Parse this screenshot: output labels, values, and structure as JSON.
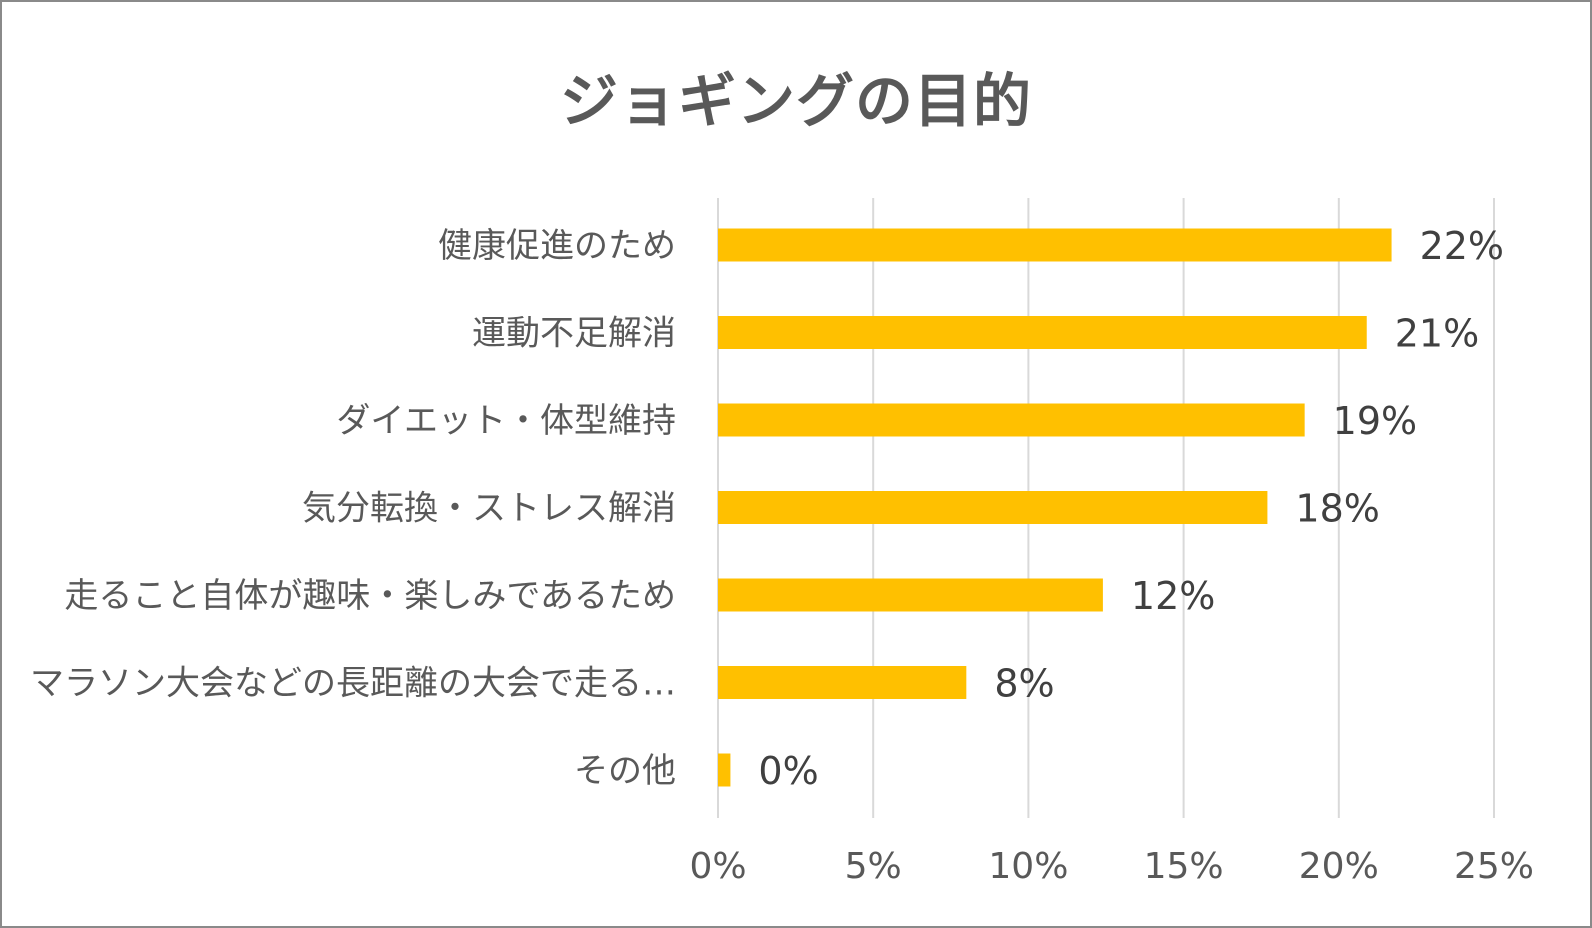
{
  "chart_data": {
    "type": "bar",
    "orientation": "horizontal",
    "title": "ジョギングの目的",
    "categories": [
      "健康促進のため",
      "運動不足解消",
      "ダイエット・体型維持",
      "気分転換・ストレス解消",
      "走ること自体が趣味・楽しみであるため",
      "マラソン大会などの長距離の大会で走る…",
      "その他"
    ],
    "values": [
      21.7,
      20.9,
      18.9,
      17.7,
      12.4,
      8.0,
      0.4
    ],
    "value_labels": [
      "22%",
      "21%",
      "19%",
      "18%",
      "12%",
      "8%",
      "0%"
    ],
    "xlim": [
      0,
      25
    ],
    "x_ticks": [
      0,
      5,
      10,
      15,
      20,
      25
    ],
    "x_tick_labels": [
      "0%",
      "5%",
      "10%",
      "15%",
      "20%",
      "25%"
    ],
    "xlabel": "",
    "ylabel": "",
    "grid": "vertical",
    "legend": "none",
    "bar_color": "#FFC000",
    "grid_color": "#D9D9D9"
  }
}
